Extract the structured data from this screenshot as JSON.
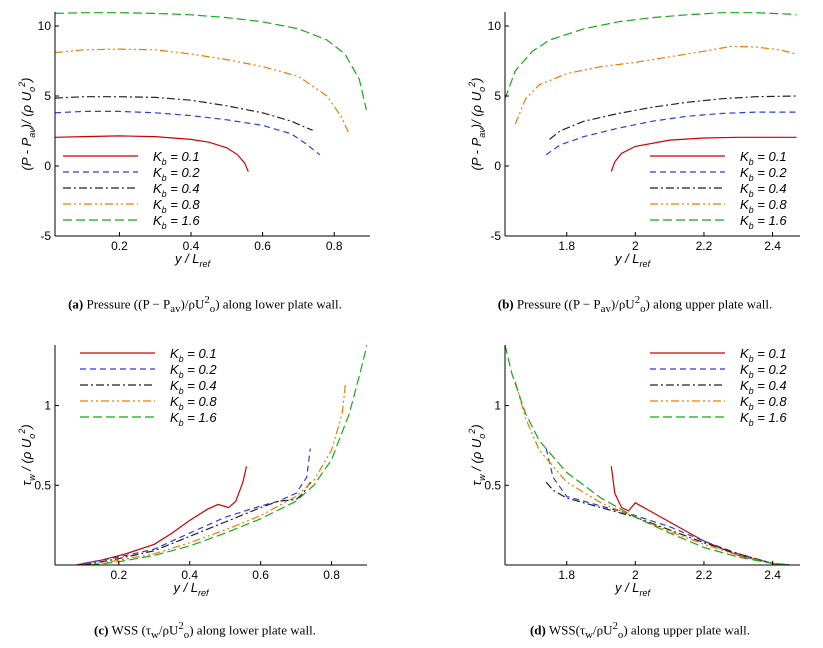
{
  "colors": {
    "kb01": "#cc0000",
    "kb02": "#2a3fd8",
    "kb04": "#222222",
    "kb08": "#ee7a00",
    "kb16": "#18a818"
  },
  "captions": {
    "a": {
      "tag": "(a)",
      "text": "Pressure ((P − P",
      "sub": "av",
      ")/ρU": "",
      "rest": ")/ρU",
      "sup": "2",
      "sub2": "o",
      "tail": ") along lower plate wall."
    },
    "b": {
      "tag": "(b)",
      "text": "Pressure ((P − P",
      "sub": "av",
      "rest": ")/ρU",
      "sup": "2",
      "sub2": "o",
      "tail": ") along upper plate wall."
    },
    "c": {
      "tag": "(c)",
      "text": "WSS (τ",
      "sub": "w",
      "rest": "/ρU",
      "sup": "2",
      "sub2": "o",
      "tail": ") along lower plate wall."
    },
    "d": {
      "tag": "(d)",
      "text": "WSS(τ",
      "sub": "w",
      "rest": "/ρU",
      "sup": "2",
      "sub2": "o",
      "tail": ") along upper plate wall."
    }
  },
  "chart_data": [
    {
      "id": "a",
      "type": "line",
      "xlabel": "y / L_ref",
      "ylabel": "(P - P_av)/ (ρ U_o^2)",
      "xlim": [
        0.02,
        0.9
      ],
      "ylim": [
        -5,
        11
      ],
      "xticks": [
        0.2,
        0.4,
        0.6,
        0.8
      ],
      "xtick_labels": [
        "0.2",
        "0.4",
        "0.6",
        "0.8"
      ],
      "yticks": [
        -5,
        0,
        5,
        10
      ],
      "ytick_labels": [
        "-5",
        "0",
        "5",
        "10"
      ],
      "legend": {
        "placement": "bottom-left"
      },
      "series": [
        {
          "name": "K_b = 0.1",
          "key": "kb01",
          "dash": "",
          "x": [
            0.02,
            0.1,
            0.2,
            0.3,
            0.4,
            0.45,
            0.5,
            0.53,
            0.55,
            0.56
          ],
          "y": [
            2.05,
            2.1,
            2.15,
            2.1,
            1.9,
            1.7,
            1.3,
            0.8,
            0.2,
            -0.4
          ]
        },
        {
          "name": "K_b = 0.2",
          "key": "kb02",
          "dash": "6,4",
          "x": [
            0.02,
            0.1,
            0.2,
            0.3,
            0.4,
            0.5,
            0.6,
            0.68,
            0.72,
            0.76
          ],
          "y": [
            3.8,
            3.9,
            3.9,
            3.8,
            3.6,
            3.3,
            2.9,
            2.3,
            1.6,
            0.8
          ]
        },
        {
          "name": "K_b = 0.4",
          "key": "kb04",
          "dash": "8,3,2,3",
          "x": [
            0.02,
            0.1,
            0.2,
            0.3,
            0.4,
            0.5,
            0.6,
            0.68,
            0.72,
            0.74
          ],
          "y": [
            4.85,
            4.95,
            4.95,
            4.9,
            4.7,
            4.3,
            3.8,
            3.2,
            2.75,
            2.55
          ]
        },
        {
          "name": "K_b = 0.8",
          "key": "kb08",
          "dash": "8,3,2,3,2,3",
          "x": [
            0.02,
            0.1,
            0.2,
            0.3,
            0.4,
            0.5,
            0.6,
            0.7,
            0.78,
            0.82,
            0.84
          ],
          "y": [
            8.1,
            8.3,
            8.35,
            8.3,
            8.0,
            7.6,
            7.1,
            6.4,
            5.0,
            3.5,
            2.4
          ]
        },
        {
          "name": "K_b = 1.6",
          "key": "kb16",
          "dash": "9,4",
          "x": [
            0.02,
            0.1,
            0.2,
            0.3,
            0.4,
            0.5,
            0.6,
            0.7,
            0.78,
            0.83,
            0.87,
            0.89
          ],
          "y": [
            10.9,
            10.95,
            10.95,
            10.9,
            10.8,
            10.6,
            10.3,
            9.8,
            9.0,
            8.0,
            6.2,
            4.0
          ]
        }
      ]
    },
    {
      "id": "b",
      "type": "line",
      "xlabel": "y / L_ref",
      "ylabel": "(P - P_av)/ (ρ U_o^2)",
      "xlim": [
        1.62,
        2.48
      ],
      "ylim": [
        -5,
        11
      ],
      "xticks": [
        1.8,
        2.0,
        2.2,
        2.4
      ],
      "xtick_labels": [
        "1.8",
        "2",
        "2.2",
        "2.4"
      ],
      "yticks": [
        -5,
        0,
        5,
        10
      ],
      "ytick_labels": [
        "-5",
        "0",
        "5",
        "10"
      ],
      "legend": {
        "placement": "bottom-right"
      },
      "series": [
        {
          "name": "K_b = 0.1",
          "key": "kb01",
          "dash": "",
          "x": [
            1.93,
            1.94,
            1.96,
            2.0,
            2.1,
            2.2,
            2.3,
            2.4,
            2.47
          ],
          "y": [
            -0.4,
            0.3,
            0.9,
            1.4,
            1.85,
            2.0,
            2.05,
            2.05,
            2.05
          ]
        },
        {
          "name": "K_b = 0.2",
          "key": "kb02",
          "dash": "6,4",
          "x": [
            1.74,
            1.78,
            1.85,
            1.95,
            2.05,
            2.15,
            2.25,
            2.35,
            2.47
          ],
          "y": [
            0.8,
            1.5,
            2.1,
            2.7,
            3.2,
            3.55,
            3.75,
            3.85,
            3.85
          ]
        },
        {
          "name": "K_b = 0.4",
          "key": "kb04",
          "dash": "8,3,2,3",
          "x": [
            1.75,
            1.78,
            1.85,
            1.95,
            2.05,
            2.15,
            2.25,
            2.35,
            2.47
          ],
          "y": [
            1.9,
            2.5,
            3.2,
            3.75,
            4.2,
            4.55,
            4.8,
            4.95,
            5.0
          ]
        },
        {
          "name": "K_b = 0.8",
          "key": "kb08",
          "dash": "8,3,2,3,2,3",
          "x": [
            1.65,
            1.68,
            1.72,
            1.8,
            1.9,
            2.0,
            2.1,
            2.2,
            2.28,
            2.35,
            2.42,
            2.47
          ],
          "y": [
            3.0,
            4.8,
            5.8,
            6.6,
            7.1,
            7.4,
            7.8,
            8.2,
            8.55,
            8.5,
            8.3,
            8.0
          ]
        },
        {
          "name": "K_b = 1.6",
          "key": "kb16",
          "dash": "9,4",
          "x": [
            1.62,
            1.65,
            1.7,
            1.75,
            1.85,
            1.95,
            2.05,
            2.15,
            2.25,
            2.35,
            2.45,
            2.47
          ],
          "y": [
            4.8,
            6.8,
            8.2,
            9.0,
            9.8,
            10.3,
            10.6,
            10.8,
            10.95,
            10.95,
            10.85,
            10.8
          ]
        }
      ]
    },
    {
      "id": "c",
      "type": "line",
      "xlabel": "y / L_ref",
      "ylabel": "τ_w / (ρ U_o^2)",
      "xlim": [
        0.02,
        0.9
      ],
      "ylim": [
        0,
        1.38
      ],
      "xticks": [
        0.2,
        0.4,
        0.6,
        0.8
      ],
      "xtick_labels": [
        "0.2",
        "0.4",
        "0.6",
        "0.8"
      ],
      "yticks": [
        0.5,
        1.0
      ],
      "ytick_labels": [
        "0.5",
        "1"
      ],
      "legend": {
        "placement": "top-left"
      },
      "series": [
        {
          "name": "K_b = 0.1",
          "key": "kb01",
          "dash": "",
          "x": [
            0.08,
            0.15,
            0.22,
            0.3,
            0.35,
            0.4,
            0.45,
            0.48,
            0.51,
            0.53,
            0.55,
            0.56
          ],
          "y": [
            0.0,
            0.03,
            0.07,
            0.13,
            0.2,
            0.28,
            0.35,
            0.38,
            0.36,
            0.4,
            0.52,
            0.62
          ]
        },
        {
          "name": "K_b = 0.2",
          "key": "kb02",
          "dash": "6,4",
          "x": [
            0.1,
            0.2,
            0.3,
            0.4,
            0.5,
            0.6,
            0.65,
            0.7,
            0.73,
            0.74
          ],
          "y": [
            0.01,
            0.05,
            0.1,
            0.2,
            0.3,
            0.37,
            0.4,
            0.45,
            0.55,
            0.73
          ]
        },
        {
          "name": "K_b = 0.4",
          "key": "kb04",
          "dash": "8,3,2,3",
          "x": [
            0.1,
            0.2,
            0.3,
            0.4,
            0.5,
            0.6,
            0.65,
            0.7,
            0.72,
            0.74
          ],
          "y": [
            0.0,
            0.04,
            0.09,
            0.18,
            0.27,
            0.36,
            0.4,
            0.41,
            0.45,
            0.52
          ]
        },
        {
          "name": "K_b = 0.8",
          "key": "kb08",
          "dash": "8,3,2,3,2,3",
          "x": [
            0.12,
            0.2,
            0.3,
            0.4,
            0.5,
            0.6,
            0.7,
            0.75,
            0.8,
            0.83,
            0.84
          ],
          "y": [
            0.0,
            0.03,
            0.07,
            0.14,
            0.22,
            0.31,
            0.43,
            0.53,
            0.72,
            0.95,
            1.15
          ]
        },
        {
          "name": "K_b = 1.6",
          "key": "kb16",
          "dash": "9,4",
          "x": [
            0.12,
            0.2,
            0.3,
            0.4,
            0.5,
            0.6,
            0.7,
            0.75,
            0.8,
            0.85,
            0.88,
            0.9
          ],
          "y": [
            0.0,
            0.02,
            0.06,
            0.12,
            0.2,
            0.29,
            0.4,
            0.5,
            0.66,
            0.95,
            1.2,
            1.38
          ]
        }
      ]
    },
    {
      "id": "d",
      "type": "line",
      "xlabel": "y / L_ref",
      "ylabel": "τ_w / (ρ U_o^2)",
      "xlim": [
        1.62,
        2.48
      ],
      "ylim": [
        0,
        1.38
      ],
      "xticks": [
        1.8,
        2.0,
        2.2,
        2.4
      ],
      "xtick_labels": [
        "1.8",
        "2",
        "2.2",
        "2.4"
      ],
      "yticks": [
        0.5,
        1.0
      ],
      "ytick_labels": [
        "0.5",
        "1"
      ],
      "legend": {
        "placement": "top-right"
      },
      "series": [
        {
          "name": "K_b = 0.1",
          "key": "kb01",
          "dash": "",
          "x": [
            1.93,
            1.94,
            1.96,
            1.98,
            2.0,
            2.05,
            2.1,
            2.2,
            2.3,
            2.4,
            2.45
          ],
          "y": [
            0.62,
            0.45,
            0.36,
            0.34,
            0.39,
            0.33,
            0.27,
            0.15,
            0.06,
            0.01,
            0.0
          ]
        },
        {
          "name": "K_b = 0.2",
          "key": "kb02",
          "dash": "6,4",
          "x": [
            1.74,
            1.76,
            1.8,
            1.9,
            2.0,
            2.1,
            2.2,
            2.3,
            2.4,
            2.45
          ],
          "y": [
            0.73,
            0.55,
            0.43,
            0.37,
            0.31,
            0.24,
            0.15,
            0.07,
            0.01,
            0.0
          ]
        },
        {
          "name": "K_b = 0.4",
          "key": "kb04",
          "dash": "8,3,2,3",
          "x": [
            1.74,
            1.76,
            1.8,
            1.9,
            2.0,
            2.1,
            2.2,
            2.3,
            2.4,
            2.45
          ],
          "y": [
            0.52,
            0.47,
            0.42,
            0.36,
            0.3,
            0.22,
            0.14,
            0.07,
            0.01,
            0.0
          ]
        },
        {
          "name": "K_b = 0.8",
          "key": "kb08",
          "dash": "8,3,2,3,2,3",
          "x": [
            1.65,
            1.68,
            1.72,
            1.8,
            1.9,
            2.0,
            2.1,
            2.2,
            2.3,
            2.4,
            2.45
          ],
          "y": [
            1.15,
            0.92,
            0.72,
            0.52,
            0.39,
            0.3,
            0.21,
            0.13,
            0.06,
            0.01,
            0.0
          ]
        },
        {
          "name": "K_b = 1.6",
          "key": "kb16",
          "dash": "9,4",
          "x": [
            1.62,
            1.64,
            1.68,
            1.72,
            1.8,
            1.9,
            2.0,
            2.1,
            2.2,
            2.3,
            2.4,
            2.45
          ],
          "y": [
            1.38,
            1.2,
            0.95,
            0.78,
            0.58,
            0.42,
            0.3,
            0.2,
            0.11,
            0.05,
            0.01,
            0.0
          ]
        }
      ]
    }
  ]
}
